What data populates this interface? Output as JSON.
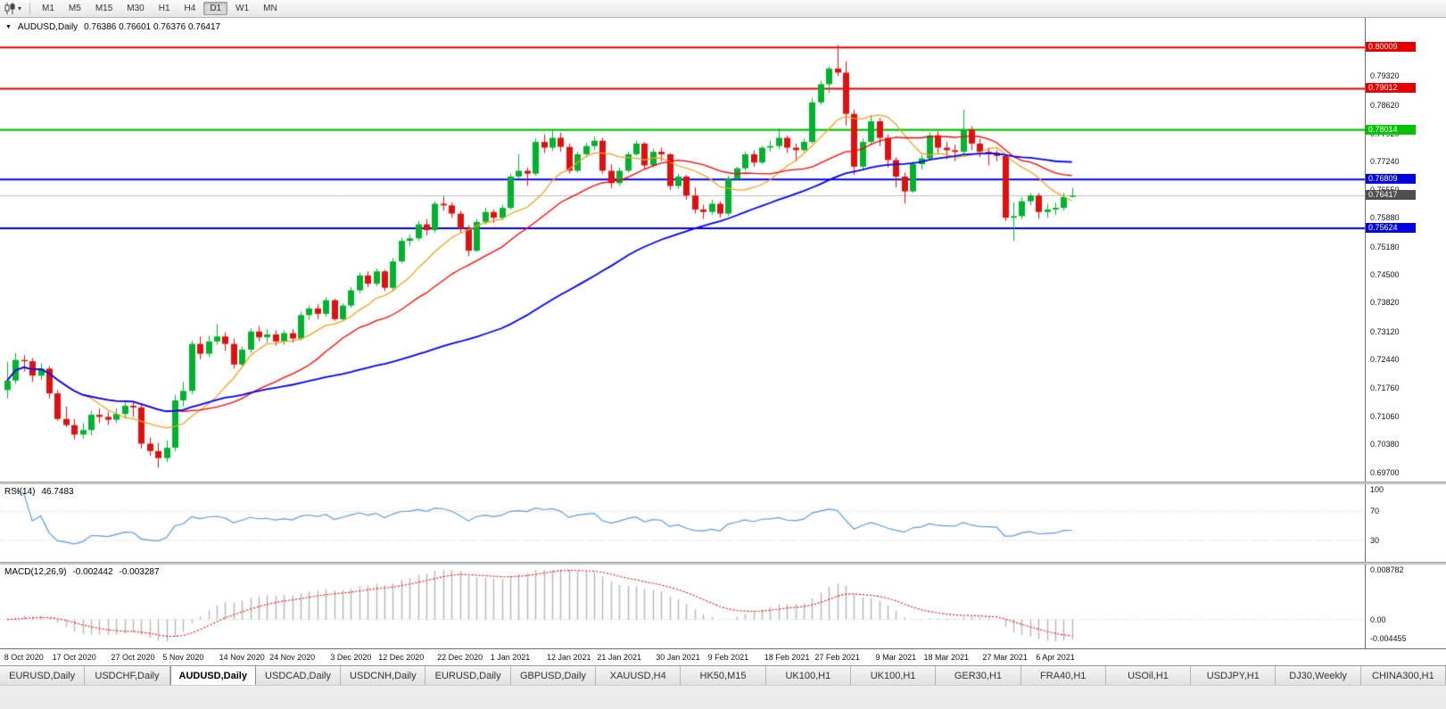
{
  "toolbar": {
    "timeframes": [
      "M1",
      "M5",
      "M15",
      "M30",
      "H1",
      "H4",
      "D1",
      "W1",
      "MN"
    ],
    "active_timeframe": "D1"
  },
  "chart_header": {
    "symbol": "AUDUSD,Daily",
    "ohlc": "0.76386 0.76601 0.76376 0.76417"
  },
  "price_scale": {
    "ticks": [
      "0.79320",
      "0.78620",
      "0.77920",
      "0.77240",
      "0.76550",
      "0.75880",
      "0.75180",
      "0.74500",
      "0.73820",
      "0.73120",
      "0.72440",
      "0.71760",
      "0.71060",
      "0.70380",
      "0.69700"
    ],
    "top_price": 0.8073,
    "bottom_price": 0.6948
  },
  "lines": [
    {
      "price": 0.80009,
      "label": "0.80009",
      "color": "#e60000",
      "width": 2
    },
    {
      "price": 0.79012,
      "label": "0.79012",
      "color": "#e60000",
      "width": 2
    },
    {
      "price": 0.78014,
      "label": "0.78014",
      "color": "#00c400",
      "width": 2.2
    },
    {
      "price": 0.76809,
      "label": "0.76809",
      "color": "#0000e0",
      "width": 2.2
    },
    {
      "price": 0.75624,
      "label": "0.75624",
      "color": "#0000e0",
      "width": 2.2
    }
  ],
  "current_price": {
    "value": 0.76417,
    "label": "0.76417",
    "line_color": "#bdbdbd",
    "box_color": "#4f4f4f"
  },
  "chart_data": {
    "type": "candlestick",
    "symbol": "AUDUSD",
    "timeframe": "Daily",
    "up_color": "#00b22d",
    "down_color": "#e01010",
    "moving_averages": [
      {
        "period": 10,
        "color": "#efa11e",
        "kind": "sma"
      },
      {
        "period": 21,
        "color": "#ff0000",
        "kind": "sma"
      },
      {
        "period": 55,
        "color": "#0000ff",
        "kind": "sma"
      }
    ],
    "x_labels": [
      {
        "index": 2,
        "label": "8 Oct 2020"
      },
      {
        "index": 8,
        "label": "17 Oct 2020"
      },
      {
        "index": 15,
        "label": "27 Oct 2020"
      },
      {
        "index": 21,
        "label": "5 Nov 2020"
      },
      {
        "index": 28,
        "label": "14 Nov 2020"
      },
      {
        "index": 34,
        "label": "24 Nov 2020"
      },
      {
        "index": 41,
        "label": "3 Dec 2020"
      },
      {
        "index": 47,
        "label": "12 Dec 2020"
      },
      {
        "index": 54,
        "label": "22 Dec 2020"
      },
      {
        "index": 60,
        "label": "1 Jan 2021"
      },
      {
        "index": 67,
        "label": "12 Jan 2021"
      },
      {
        "index": 73,
        "label": "21 Jan 2021"
      },
      {
        "index": 80,
        "label": "30 Jan 2021"
      },
      {
        "index": 86,
        "label": "9 Feb 2021"
      },
      {
        "index": 93,
        "label": "18 Feb 2021"
      },
      {
        "index": 99,
        "label": "27 Feb 2021"
      },
      {
        "index": 106,
        "label": "9 Mar 2021"
      },
      {
        "index": 112,
        "label": "18 Mar 2021"
      },
      {
        "index": 119,
        "label": "27 Mar 2021"
      },
      {
        "index": 125,
        "label": "6 Apr 2021"
      }
    ],
    "candles": [
      [
        0.717,
        0.7238,
        0.715,
        0.7193
      ],
      [
        0.7193,
        0.726,
        0.7185,
        0.7243
      ],
      [
        0.7243,
        0.7255,
        0.7215,
        0.724
      ],
      [
        0.724,
        0.7248,
        0.719,
        0.7205
      ],
      [
        0.7205,
        0.7235,
        0.7195,
        0.7222
      ],
      [
        0.7222,
        0.7228,
        0.715,
        0.7162
      ],
      [
        0.7162,
        0.717,
        0.7095,
        0.71
      ],
      [
        0.71,
        0.713,
        0.708,
        0.7085
      ],
      [
        0.7085,
        0.71,
        0.705,
        0.7062
      ],
      [
        0.7062,
        0.709,
        0.7052,
        0.7073
      ],
      [
        0.7073,
        0.712,
        0.706,
        0.711
      ],
      [
        0.711,
        0.7125,
        0.709,
        0.7105
      ],
      [
        0.7105,
        0.7118,
        0.7085,
        0.7098
      ],
      [
        0.7098,
        0.7125,
        0.709,
        0.7112
      ],
      [
        0.7112,
        0.714,
        0.71,
        0.7132
      ],
      [
        0.7132,
        0.7145,
        0.7105,
        0.7128
      ],
      [
        0.7128,
        0.7135,
        0.7028,
        0.704
      ],
      [
        0.704,
        0.7055,
        0.701,
        0.7022
      ],
      [
        0.7022,
        0.7042,
        0.6982,
        0.7005
      ],
      [
        0.7005,
        0.7048,
        0.6995,
        0.703
      ],
      [
        0.703,
        0.7158,
        0.7022,
        0.7145
      ],
      [
        0.7145,
        0.719,
        0.713,
        0.7168
      ],
      [
        0.7168,
        0.729,
        0.716,
        0.7282
      ],
      [
        0.7282,
        0.73,
        0.7245,
        0.7258
      ],
      [
        0.7258,
        0.7302,
        0.725,
        0.7288
      ],
      [
        0.7288,
        0.733,
        0.728,
        0.73
      ],
      [
        0.73,
        0.731,
        0.7265,
        0.7282
      ],
      [
        0.7282,
        0.7295,
        0.7222,
        0.7232
      ],
      [
        0.7232,
        0.7275,
        0.7225,
        0.7268
      ],
      [
        0.7268,
        0.732,
        0.726,
        0.7312
      ],
      [
        0.7312,
        0.7325,
        0.7288,
        0.7298
      ],
      [
        0.7298,
        0.7318,
        0.7285,
        0.7305
      ],
      [
        0.7305,
        0.7315,
        0.7278,
        0.7288
      ],
      [
        0.7288,
        0.7315,
        0.728,
        0.7308
      ],
      [
        0.7308,
        0.7318,
        0.7285,
        0.7295
      ],
      [
        0.7295,
        0.736,
        0.729,
        0.7352
      ],
      [
        0.7352,
        0.7375,
        0.734,
        0.7368
      ],
      [
        0.7368,
        0.7378,
        0.7342,
        0.7355
      ],
      [
        0.7355,
        0.7395,
        0.7348,
        0.7388
      ],
      [
        0.7388,
        0.7392,
        0.7338,
        0.7342
      ],
      [
        0.7342,
        0.738,
        0.7338,
        0.7375
      ],
      [
        0.7375,
        0.742,
        0.737,
        0.7412
      ],
      [
        0.7412,
        0.7455,
        0.7405,
        0.7448
      ],
      [
        0.7448,
        0.7458,
        0.742,
        0.7428
      ],
      [
        0.7428,
        0.7465,
        0.7422,
        0.7458
      ],
      [
        0.7458,
        0.7462,
        0.741,
        0.7418
      ],
      [
        0.7418,
        0.749,
        0.7412,
        0.7482
      ],
      [
        0.7482,
        0.754,
        0.7478,
        0.7532
      ],
      [
        0.7532,
        0.7548,
        0.752,
        0.7538
      ],
      [
        0.7538,
        0.758,
        0.7532,
        0.7572
      ],
      [
        0.7572,
        0.7585,
        0.7545,
        0.7558
      ],
      [
        0.7558,
        0.7628,
        0.7552,
        0.7622
      ],
      [
        0.7622,
        0.764,
        0.7605,
        0.7618
      ],
      [
        0.7618,
        0.7625,
        0.7588,
        0.7598
      ],
      [
        0.7598,
        0.7605,
        0.7552,
        0.7562
      ],
      [
        0.7562,
        0.757,
        0.7495,
        0.7508
      ],
      [
        0.7508,
        0.7585,
        0.7505,
        0.7578
      ],
      [
        0.7578,
        0.7612,
        0.7572,
        0.7602
      ],
      [
        0.7602,
        0.7608,
        0.7575,
        0.7588
      ],
      [
        0.7588,
        0.762,
        0.7582,
        0.7612
      ],
      [
        0.7612,
        0.7695,
        0.7608,
        0.7688
      ],
      [
        0.7688,
        0.7742,
        0.7682,
        0.7702
      ],
      [
        0.7702,
        0.771,
        0.7665,
        0.7695
      ],
      [
        0.7695,
        0.778,
        0.769,
        0.7772
      ],
      [
        0.7772,
        0.779,
        0.7745,
        0.7758
      ],
      [
        0.7758,
        0.78,
        0.775,
        0.7782
      ],
      [
        0.7782,
        0.7795,
        0.7748,
        0.776
      ],
      [
        0.776,
        0.7768,
        0.7695,
        0.7702
      ],
      [
        0.7702,
        0.7748,
        0.7698,
        0.7742
      ],
      [
        0.7742,
        0.777,
        0.7735,
        0.7762
      ],
      [
        0.7762,
        0.7785,
        0.7752,
        0.7775
      ],
      [
        0.7775,
        0.7782,
        0.7695,
        0.7702
      ],
      [
        0.7702,
        0.7718,
        0.766,
        0.7672
      ],
      [
        0.7672,
        0.771,
        0.7665,
        0.7702
      ],
      [
        0.7702,
        0.7748,
        0.7698,
        0.7742
      ],
      [
        0.7742,
        0.7775,
        0.7738,
        0.7768
      ],
      [
        0.7768,
        0.7772,
        0.7705,
        0.7715
      ],
      [
        0.7715,
        0.7755,
        0.771,
        0.7748
      ],
      [
        0.7748,
        0.7758,
        0.7725,
        0.7742
      ],
      [
        0.7742,
        0.7745,
        0.7655,
        0.7665
      ],
      [
        0.7665,
        0.7695,
        0.7658,
        0.7688
      ],
      [
        0.7688,
        0.7692,
        0.7632,
        0.7642
      ],
      [
        0.7642,
        0.7662,
        0.7598,
        0.7608
      ],
      [
        0.7608,
        0.762,
        0.7585,
        0.7602
      ],
      [
        0.7602,
        0.7632,
        0.7595,
        0.7622
      ],
      [
        0.7622,
        0.7628,
        0.7588,
        0.7598
      ],
      [
        0.7598,
        0.769,
        0.7592,
        0.7682
      ],
      [
        0.7682,
        0.7712,
        0.7678,
        0.7708
      ],
      [
        0.7708,
        0.7748,
        0.7702,
        0.7742
      ],
      [
        0.7742,
        0.7752,
        0.7712,
        0.7722
      ],
      [
        0.7722,
        0.7762,
        0.7718,
        0.7758
      ],
      [
        0.7758,
        0.7775,
        0.7748,
        0.7762
      ],
      [
        0.7762,
        0.7805,
        0.7755,
        0.7782
      ],
      [
        0.7782,
        0.7788,
        0.7745,
        0.7758
      ],
      [
        0.7758,
        0.7768,
        0.7725,
        0.7752
      ],
      [
        0.7752,
        0.778,
        0.7748,
        0.7772
      ],
      [
        0.7772,
        0.7878,
        0.7768,
        0.7868
      ],
      [
        0.7868,
        0.792,
        0.7862,
        0.7912
      ],
      [
        0.7912,
        0.7955,
        0.789,
        0.795
      ],
      [
        0.795,
        0.8007,
        0.7932,
        0.794
      ],
      [
        0.794,
        0.7968,
        0.7812,
        0.784
      ],
      [
        0.784,
        0.785,
        0.7692,
        0.7712
      ],
      [
        0.7712,
        0.778,
        0.7705,
        0.7772
      ],
      [
        0.7772,
        0.7838,
        0.7765,
        0.7822
      ],
      [
        0.7822,
        0.783,
        0.7762,
        0.7782
      ],
      [
        0.7782,
        0.779,
        0.771,
        0.7728
      ],
      [
        0.7728,
        0.7735,
        0.7662,
        0.7688
      ],
      [
        0.7688,
        0.7698,
        0.7622,
        0.7652
      ],
      [
        0.7652,
        0.7725,
        0.7648,
        0.7718
      ],
      [
        0.7718,
        0.774,
        0.7705,
        0.7732
      ],
      [
        0.7732,
        0.7795,
        0.7728,
        0.7788
      ],
      [
        0.7788,
        0.7798,
        0.7745,
        0.7758
      ],
      [
        0.7758,
        0.7772,
        0.773,
        0.7752
      ],
      [
        0.7752,
        0.7765,
        0.7725,
        0.7748
      ],
      [
        0.7748,
        0.785,
        0.7742,
        0.7802
      ],
      [
        0.7802,
        0.781,
        0.7752,
        0.7768
      ],
      [
        0.7768,
        0.778,
        0.7735,
        0.7748
      ],
      [
        0.7748,
        0.7758,
        0.7715,
        0.7745
      ],
      [
        0.7745,
        0.7752,
        0.7725,
        0.7738
      ],
      [
        0.7738,
        0.7742,
        0.758,
        0.7588
      ],
      [
        0.7588,
        0.7625,
        0.7532,
        0.7592
      ],
      [
        0.7592,
        0.7638,
        0.7585,
        0.7628
      ],
      [
        0.7628,
        0.7648,
        0.7618,
        0.7642
      ],
      [
        0.7642,
        0.7648,
        0.7585,
        0.7602
      ],
      [
        0.7602,
        0.7622,
        0.7588,
        0.7608
      ],
      [
        0.7608,
        0.7625,
        0.7595,
        0.7612
      ],
      [
        0.7612,
        0.7648,
        0.7605,
        0.7638
      ],
      [
        0.76386,
        0.76601,
        0.76376,
        0.76417
      ]
    ]
  },
  "rsi_panel": {
    "name": "RSI(14)",
    "value": "46.7483",
    "period": 14,
    "levels": [
      "100",
      "70",
      "30"
    ],
    "level_values": [
      100,
      70,
      30
    ],
    "line_color": "#5b9bd5"
  },
  "macd_panel": {
    "name": "MACD(12,26,9)",
    "value_main": "-0.002442",
    "value_signal": "-0.003287",
    "fast": 12,
    "slow": 26,
    "signal": 9,
    "scale_labels": [
      "0.008782",
      "0.00",
      "-0.004455"
    ],
    "scale_values": [
      0.008782,
      0.0,
      -0.004455
    ],
    "hist_color": "#b5b5b5",
    "signal_color": "#ff0000"
  },
  "tabs": {
    "active_index": 2,
    "items": [
      {
        "label": "EURUSD,Daily"
      },
      {
        "label": "USDCHF,Daily"
      },
      {
        "label": "AUDUSD,Daily"
      },
      {
        "label": "USDCAD,Daily"
      },
      {
        "label": "USDCNH,Daily"
      },
      {
        "label": "EURUSD,Daily"
      },
      {
        "label": "GBPUSD,Daily"
      },
      {
        "label": "XAUUSD,H4"
      },
      {
        "label": "HK50,M15"
      },
      {
        "label": "UK100,H1"
      },
      {
        "label": "UK100,H1"
      },
      {
        "label": "GER30,H1"
      },
      {
        "label": "FRA40,H1"
      },
      {
        "label": "USOil,H1"
      },
      {
        "label": "USDJPY,H1"
      },
      {
        "label": "DJ30,Weekly"
      },
      {
        "label": "CHINA300,H1"
      }
    ]
  }
}
